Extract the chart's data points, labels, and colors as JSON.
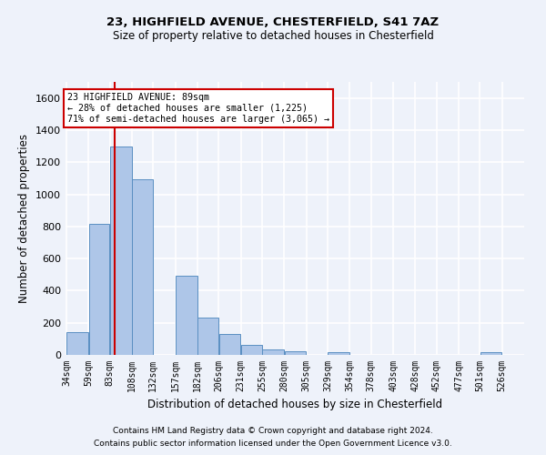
{
  "title1": "23, HIGHFIELD AVENUE, CHESTERFIELD, S41 7AZ",
  "title2": "Size of property relative to detached houses in Chesterfield",
  "xlabel": "Distribution of detached houses by size in Chesterfield",
  "ylabel": "Number of detached properties",
  "footnote1": "Contains HM Land Registry data © Crown copyright and database right 2024.",
  "footnote2": "Contains public sector information licensed under the Open Government Licence v3.0.",
  "annotation_line1": "23 HIGHFIELD AVENUE: 89sqm",
  "annotation_line2": "← 28% of detached houses are smaller (1,225)",
  "annotation_line3": "71% of semi-detached houses are larger (3,065) →",
  "bar_color": "#aec6e8",
  "bar_edge_color": "#5a8fc2",
  "vline_color": "#cc0000",
  "vline_x": 89,
  "categories": [
    "34sqm",
    "59sqm",
    "83sqm",
    "108sqm",
    "132sqm",
    "157sqm",
    "182sqm",
    "206sqm",
    "231sqm",
    "255sqm",
    "280sqm",
    "305sqm",
    "329sqm",
    "354sqm",
    "378sqm",
    "403sqm",
    "428sqm",
    "452sqm",
    "477sqm",
    "501sqm",
    "526sqm"
  ],
  "bin_edges": [
    34,
    59,
    83,
    108,
    132,
    157,
    182,
    206,
    231,
    255,
    280,
    305,
    329,
    354,
    378,
    403,
    428,
    452,
    477,
    501,
    526,
    551
  ],
  "values": [
    140,
    815,
    1295,
    1095,
    0,
    495,
    230,
    130,
    65,
    35,
    25,
    0,
    15,
    0,
    0,
    0,
    0,
    0,
    0,
    15,
    0
  ],
  "ylim": [
    0,
    1700
  ],
  "yticks": [
    0,
    200,
    400,
    600,
    800,
    1000,
    1200,
    1400,
    1600
  ],
  "bg_color": "#eef2fa",
  "grid_color": "#ffffff",
  "annotation_box_color": "#ffffff",
  "annotation_box_edge": "#cc0000"
}
